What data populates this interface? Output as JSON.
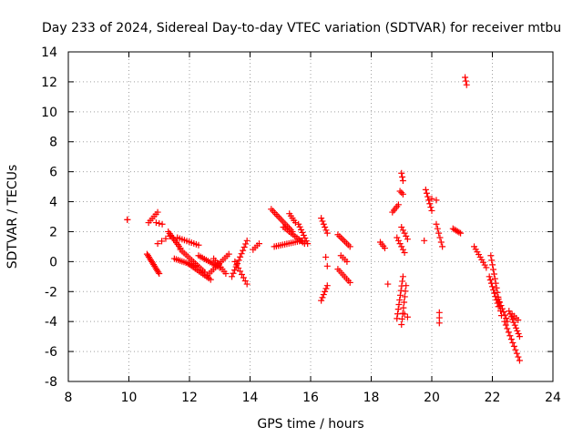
{
  "chart_data": {
    "type": "scatter",
    "title": "Day 233 of 2024, Sidereal Day-to-day VTEC variation (SDTVAR) for receiver mtbu",
    "xlabel": "GPS time / hours",
    "ylabel": "SDTVAR / TECUs",
    "xlim": [
      8,
      24
    ],
    "ylim": [
      -8,
      14
    ],
    "xticks": [
      8,
      10,
      12,
      14,
      16,
      18,
      20,
      22,
      24
    ],
    "yticks": [
      -8,
      -6,
      -4,
      -2,
      0,
      2,
      4,
      6,
      8,
      10,
      12,
      14
    ],
    "grid": true,
    "marker": "+",
    "color": "#ff0000",
    "segments": [
      {
        "x0": 9.95,
        "x1": 9.95,
        "y0": 2.8,
        "y1": 2.8,
        "n": 2
      },
      {
        "x0": 10.6,
        "x1": 11.0,
        "y0": 0.5,
        "y1": -0.8,
        "n": 14
      },
      {
        "x0": 10.65,
        "x1": 10.95,
        "y0": 2.6,
        "y1": 3.3,
        "n": 6
      },
      {
        "x0": 10.9,
        "x1": 11.1,
        "y0": 2.6,
        "y1": 2.5,
        "n": 3
      },
      {
        "x0": 10.95,
        "x1": 11.35,
        "y0": 1.2,
        "y1": 1.7,
        "n": 4
      },
      {
        "x0": 11.3,
        "x1": 11.7,
        "y0": 2.0,
        "y1": 0.9,
        "n": 10
      },
      {
        "x0": 11.5,
        "x1": 12.2,
        "y0": 0.2,
        "y1": -0.3,
        "n": 12
      },
      {
        "x0": 11.6,
        "x1": 12.3,
        "y0": 1.6,
        "y1": 1.1,
        "n": 10
      },
      {
        "x0": 11.7,
        "x1": 12.5,
        "y0": 0.8,
        "y1": -0.7,
        "n": 14
      },
      {
        "x0": 12.0,
        "x1": 12.7,
        "y0": -0.2,
        "y1": -1.2,
        "n": 12
      },
      {
        "x0": 12.3,
        "x1": 13.0,
        "y0": 0.4,
        "y1": -0.4,
        "n": 12
      },
      {
        "x0": 12.6,
        "x1": 13.3,
        "y0": -0.9,
        "y1": 0.5,
        "n": 12
      },
      {
        "x0": 12.8,
        "x1": 13.2,
        "y0": 0.2,
        "y1": -0.8,
        "n": 8
      },
      {
        "x0": 13.4,
        "x1": 13.9,
        "y0": -1.0,
        "y1": 1.4,
        "n": 12
      },
      {
        "x0": 13.5,
        "x1": 13.9,
        "y0": 0.0,
        "y1": -1.5,
        "n": 8
      },
      {
        "x0": 14.1,
        "x1": 14.3,
        "y0": 0.8,
        "y1": 1.2,
        "n": 4
      },
      {
        "x0": 14.7,
        "x1": 15.4,
        "y0": 3.5,
        "y1": 2.0,
        "n": 14
      },
      {
        "x0": 14.8,
        "x1": 15.7,
        "y0": 1.0,
        "y1": 1.4,
        "n": 14
      },
      {
        "x0": 15.1,
        "x1": 15.8,
        "y0": 2.3,
        "y1": 1.2,
        "n": 12
      },
      {
        "x0": 15.3,
        "x1": 15.5,
        "y0": 3.2,
        "y1": 2.6,
        "n": 5
      },
      {
        "x0": 15.6,
        "x1": 15.9,
        "y0": 2.5,
        "y1": 1.2,
        "n": 8
      },
      {
        "x0": 16.35,
        "x1": 16.55,
        "y0": 2.9,
        "y1": 1.9,
        "n": 6
      },
      {
        "x0": 16.35,
        "x1": 16.55,
        "y0": -2.6,
        "y1": -1.6,
        "n": 6
      },
      {
        "x0": 16.5,
        "x1": 16.55,
        "y0": 0.3,
        "y1": -0.3,
        "n": 2
      },
      {
        "x0": 16.9,
        "x1": 17.3,
        "y0": 1.8,
        "y1": 1.0,
        "n": 8
      },
      {
        "x0": 16.9,
        "x1": 17.3,
        "y0": -0.5,
        "y1": -1.4,
        "n": 8
      },
      {
        "x0": 17.0,
        "x1": 17.2,
        "y0": 0.4,
        "y1": 0.0,
        "n": 4
      },
      {
        "x0": 18.3,
        "x1": 18.45,
        "y0": 1.3,
        "y1": 0.9,
        "n": 4
      },
      {
        "x0": 18.55,
        "x1": 18.55,
        "y0": -1.5,
        "y1": -1.5,
        "n": 1
      },
      {
        "x0": 18.7,
        "x1": 18.9,
        "y0": 3.3,
        "y1": 3.8,
        "n": 5
      },
      {
        "x0": 18.85,
        "x1": 19.1,
        "y0": 1.6,
        "y1": 0.6,
        "n": 6
      },
      {
        "x0": 18.85,
        "x1": 19.05,
        "y0": -3.8,
        "y1": -1.0,
        "n": 10
      },
      {
        "x0": 19.0,
        "x1": 19.15,
        "y0": -4.2,
        "y1": -1.6,
        "n": 8
      },
      {
        "x0": 19.0,
        "x1": 19.05,
        "y0": 5.9,
        "y1": 5.4,
        "n": 3
      },
      {
        "x0": 19.0,
        "x1": 19.2,
        "y0": 2.3,
        "y1": 1.5,
        "n": 5
      },
      {
        "x0": 19.1,
        "x1": 19.2,
        "y0": -3.5,
        "y1": -3.7,
        "n": 2
      },
      {
        "x0": 18.95,
        "x1": 19.05,
        "y0": 4.7,
        "y1": 4.5,
        "n": 3
      },
      {
        "x0": 19.75,
        "x1": 19.75,
        "y0": 1.4,
        "y1": 1.4,
        "n": 1
      },
      {
        "x0": 19.8,
        "x1": 20.0,
        "y0": 4.8,
        "y1": 3.4,
        "n": 7
      },
      {
        "x0": 20.0,
        "x1": 20.15,
        "y0": 4.2,
        "y1": 4.1,
        "n": 2
      },
      {
        "x0": 20.15,
        "x1": 20.35,
        "y0": 2.5,
        "y1": 1.0,
        "n": 6
      },
      {
        "x0": 20.25,
        "x1": 20.25,
        "y0": -3.4,
        "y1": -4.1,
        "n": 3
      },
      {
        "x0": 20.7,
        "x1": 20.95,
        "y0": 2.2,
        "y1": 1.9,
        "n": 6
      },
      {
        "x0": 21.1,
        "x1": 21.15,
        "y0": 12.3,
        "y1": 11.8,
        "n": 3
      },
      {
        "x0": 21.4,
        "x1": 21.8,
        "y0": 1.0,
        "y1": -0.4,
        "n": 9
      },
      {
        "x0": 21.9,
        "x1": 22.2,
        "y0": -1.0,
        "y1": -3.0,
        "n": 10
      },
      {
        "x0": 21.95,
        "x1": 22.3,
        "y0": 0.4,
        "y1": -3.6,
        "n": 14
      },
      {
        "x0": 22.2,
        "x1": 22.5,
        "y0": -2.5,
        "y1": -4.0,
        "n": 8
      },
      {
        "x0": 22.4,
        "x1": 22.9,
        "y0": -4.0,
        "y1": -6.6,
        "n": 12
      },
      {
        "x0": 22.55,
        "x1": 22.9,
        "y0": -3.3,
        "y1": -5.0,
        "n": 10
      },
      {
        "x0": 22.65,
        "x1": 22.85,
        "y0": -3.5,
        "y1": -3.9,
        "n": 4
      }
    ]
  }
}
